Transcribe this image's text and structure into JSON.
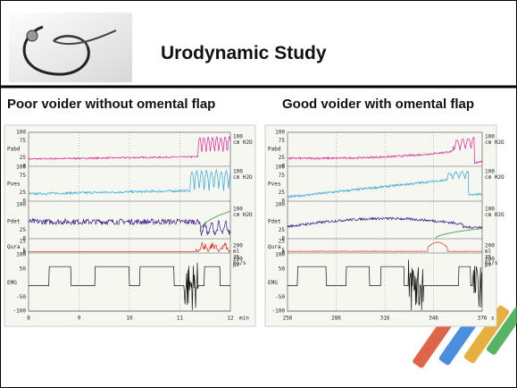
{
  "header": {
    "title": "Urodynamic Study"
  },
  "panels": [
    {
      "title": "Poor voider without omental flap",
      "x_labels": [
        "8",
        "9",
        "10",
        "11",
        "12"
      ],
      "x_unit": "min",
      "channels": [
        {
          "name": "Pabd",
          "ticks": [
            100,
            75,
            25,
            0
          ],
          "right_labels": [
            "100",
            "cm H2O"
          ]
        },
        {
          "name": "Pves",
          "ticks": [
            100,
            75,
            25,
            0
          ],
          "right_labels": [
            "100",
            "cm H2O"
          ]
        },
        {
          "name": "Pdet",
          "ticks": [
            100,
            25,
            0
          ],
          "right_labels": [
            "100",
            "cm H2O"
          ]
        },
        {
          "name": "Qura",
          "ticks": [
            25,
            5,
            0
          ],
          "right_labels": [
            "200",
            "ml",
            "25",
            "ml/s"
          ]
        },
        {
          "name": "EMG",
          "ticks": [
            100,
            50,
            -50,
            -100
          ],
          "right_labels": [
            "200",
            "μV"
          ]
        }
      ]
    },
    {
      "title": "Good voider with omental flap",
      "x_labels": [
        "256",
        "286",
        "316",
        "346",
        "376"
      ],
      "x_unit": "s",
      "channels": [
        {
          "name": "Pabd",
          "ticks": [
            100,
            75,
            25,
            0
          ],
          "right_labels": [
            "100",
            "cm H2O"
          ]
        },
        {
          "name": "Pves",
          "ticks": [
            100,
            75,
            25,
            0
          ],
          "right_labels": [
            "100",
            "cm H2O"
          ]
        },
        {
          "name": "Pdet",
          "ticks": [
            100,
            25,
            0
          ],
          "right_labels": [
            "100",
            "cm H2O"
          ]
        },
        {
          "name": "Qura",
          "ticks": [
            25,
            5,
            0
          ],
          "right_labels": [
            "200",
            "ml",
            "25",
            "ml/s"
          ]
        },
        {
          "name": "EMG",
          "ticks": [
            100,
            50,
            -50,
            -100
          ],
          "right_labels": [
            "200",
            "μV"
          ]
        }
      ]
    }
  ]
}
